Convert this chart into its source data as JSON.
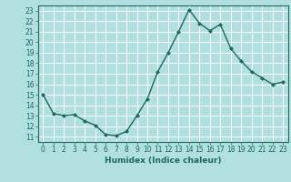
{
  "x": [
    0,
    1,
    2,
    3,
    4,
    5,
    6,
    7,
    8,
    9,
    10,
    11,
    12,
    13,
    14,
    15,
    16,
    17,
    18,
    19,
    20,
    21,
    22,
    23
  ],
  "y": [
    15.0,
    13.2,
    13.0,
    13.1,
    12.5,
    12.1,
    11.2,
    11.1,
    11.5,
    13.0,
    14.6,
    17.2,
    19.0,
    21.0,
    23.1,
    21.8,
    21.1,
    21.7,
    19.4,
    18.2,
    17.2,
    16.6,
    16.0,
    16.2
  ],
  "line_color": "#1a6b5e",
  "marker": "D",
  "markersize": 2.0,
  "linewidth": 1.0,
  "bg_color": "#b2dfdf",
  "grid_color": "#ffffff",
  "xlabel": "Humidex (Indice chaleur)",
  "ylabel_ticks": [
    11,
    12,
    13,
    14,
    15,
    16,
    17,
    18,
    19,
    20,
    21,
    22,
    23
  ],
  "xlim": [
    -0.5,
    23.5
  ],
  "ylim": [
    10.5,
    23.5
  ],
  "xticks": [
    0,
    1,
    2,
    3,
    4,
    5,
    6,
    7,
    8,
    9,
    10,
    11,
    12,
    13,
    14,
    15,
    16,
    17,
    18,
    19,
    20,
    21,
    22,
    23
  ],
  "tick_color": "#1a6b5e",
  "label_fontsize": 5.5,
  "axis_fontsize": 6.5
}
